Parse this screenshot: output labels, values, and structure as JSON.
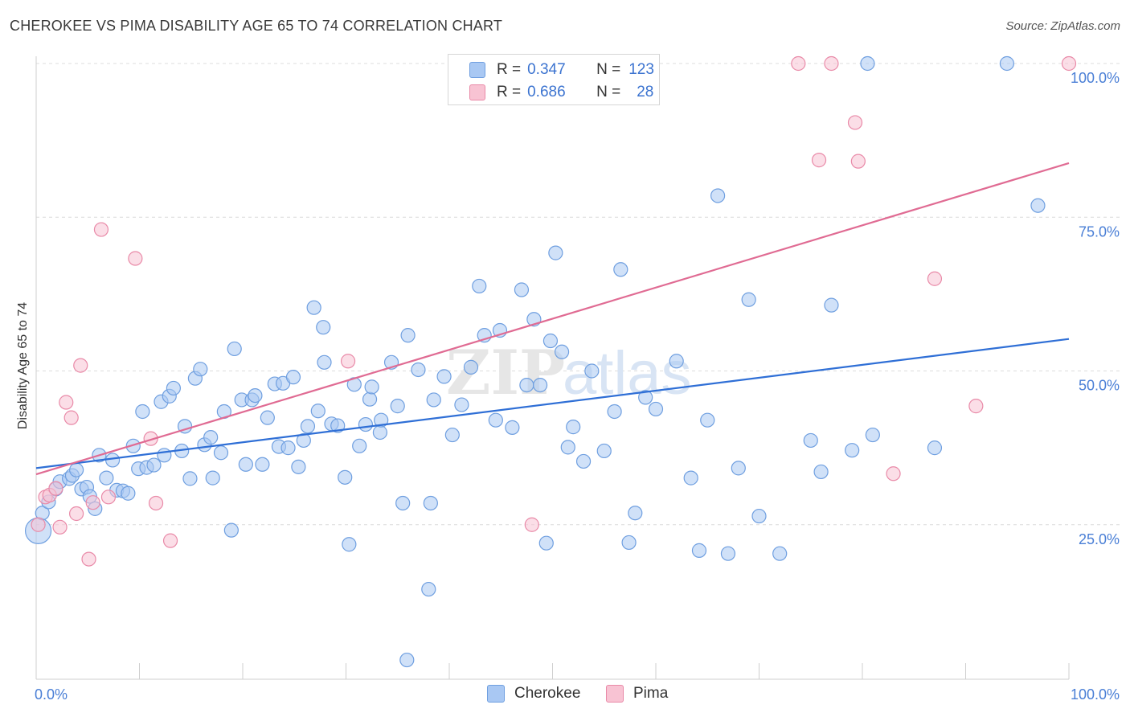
{
  "header": {
    "title": "CHEROKEE VS PIMA DISABILITY AGE 65 TO 74 CORRELATION CHART",
    "source": "Source: ZipAtlas.com"
  },
  "legend": {
    "rows": [
      {
        "r_label": "R =",
        "r_value": "0.347",
        "n_label": "N =",
        "n_value": "123",
        "color": "#a9c8f3",
        "stroke": "#6f9fe0"
      },
      {
        "r_label": "R =",
        "r_value": "0.686",
        "n_label": "N =",
        "n_value": "28",
        "color": "#f8c3d3",
        "stroke": "#e98aa8"
      }
    ]
  },
  "bottom_legend": [
    {
      "label": "Cherokee",
      "color": "#a9c8f3",
      "stroke": "#6f9fe0"
    },
    {
      "label": "Pima",
      "color": "#f8c3d3",
      "stroke": "#e98aa8"
    }
  ],
  "watermark": {
    "zip": "ZIP",
    "atlas": "atlas"
  },
  "chart_data": {
    "type": "scatter",
    "title": "CHEROKEE VS PIMA DISABILITY AGE 65 TO 74 CORRELATION CHART",
    "xlabel": "",
    "ylabel": "Disability Age 65 to 74",
    "xlim": [
      0,
      100
    ],
    "ylim": [
      0,
      102
    ],
    "x_tick_labels": [
      "0.0%",
      "100.0%"
    ],
    "y_ticks": [
      25,
      50,
      75,
      100
    ],
    "y_tick_labels": [
      "25.0%",
      "50.0%",
      "75.0%",
      "100.0%"
    ],
    "grid": true,
    "legend_position": "top-center",
    "series": [
      {
        "name": "Cherokee",
        "color": "#6f9fe0",
        "fill": "#a9c8f3",
        "trend": {
          "x": [
            0,
            100
          ],
          "y": [
            34.2,
            55.2
          ],
          "color": "#2f6fd6"
        },
        "points": [
          [
            0.2,
            24.0
          ],
          [
            0.6,
            26.9
          ],
          [
            1.2,
            28.7
          ],
          [
            1.9,
            30.8
          ],
          [
            2.3,
            32.0
          ],
          [
            3.2,
            32.5
          ],
          [
            3.5,
            33.0
          ],
          [
            3.9,
            33.9
          ],
          [
            4.4,
            30.8
          ],
          [
            4.9,
            31.1
          ],
          [
            5.2,
            29.6
          ],
          [
            5.7,
            27.6
          ],
          [
            6.1,
            36.3
          ],
          [
            6.8,
            32.6
          ],
          [
            7.4,
            35.5
          ],
          [
            7.8,
            30.6
          ],
          [
            8.4,
            30.5
          ],
          [
            8.9,
            30.1
          ],
          [
            9.4,
            37.8
          ],
          [
            9.9,
            34.1
          ],
          [
            10.3,
            43.4
          ],
          [
            10.7,
            34.3
          ],
          [
            11.4,
            34.7
          ],
          [
            12.1,
            45.0
          ],
          [
            12.4,
            36.3
          ],
          [
            12.9,
            45.9
          ],
          [
            13.3,
            47.2
          ],
          [
            14.1,
            37.0
          ],
          [
            14.4,
            41.0
          ],
          [
            14.9,
            32.5
          ],
          [
            15.4,
            48.8
          ],
          [
            15.9,
            50.3
          ],
          [
            16.3,
            38.0
          ],
          [
            16.9,
            39.2
          ],
          [
            17.1,
            32.6
          ],
          [
            17.9,
            36.7
          ],
          [
            18.2,
            43.4
          ],
          [
            18.9,
            24.1
          ],
          [
            19.2,
            53.6
          ],
          [
            19.9,
            45.3
          ],
          [
            20.3,
            34.8
          ],
          [
            20.9,
            45.3
          ],
          [
            21.2,
            46.0
          ],
          [
            21.9,
            34.8
          ],
          [
            22.4,
            42.4
          ],
          [
            23.1,
            47.9
          ],
          [
            23.5,
            37.7
          ],
          [
            23.9,
            48.0
          ],
          [
            24.4,
            37.5
          ],
          [
            24.9,
            49.0
          ],
          [
            25.4,
            34.4
          ],
          [
            25.9,
            38.7
          ],
          [
            26.3,
            41.0
          ],
          [
            26.9,
            60.3
          ],
          [
            27.3,
            43.5
          ],
          [
            27.9,
            51.4
          ],
          [
            27.8,
            57.1
          ],
          [
            28.6,
            41.4
          ],
          [
            29.2,
            41.1
          ],
          [
            29.9,
            32.7
          ],
          [
            30.3,
            21.8
          ],
          [
            30.8,
            47.8
          ],
          [
            31.3,
            37.8
          ],
          [
            31.9,
            41.3
          ],
          [
            32.3,
            45.4
          ],
          [
            32.5,
            47.4
          ],
          [
            33.3,
            40.0
          ],
          [
            33.4,
            42.0
          ],
          [
            34.4,
            51.4
          ],
          [
            35.0,
            44.3
          ],
          [
            35.5,
            28.5
          ],
          [
            36.0,
            55.8
          ],
          [
            37.0,
            50.2
          ],
          [
            38.0,
            14.5
          ],
          [
            38.2,
            28.5
          ],
          [
            38.5,
            45.3
          ],
          [
            39.5,
            49.1
          ],
          [
            40.3,
            39.6
          ],
          [
            41.2,
            44.5
          ],
          [
            42.1,
            50.6
          ],
          [
            42.9,
            63.8
          ],
          [
            43.4,
            55.8
          ],
          [
            44.5,
            42.0
          ],
          [
            44.9,
            56.6
          ],
          [
            46.1,
            40.8
          ],
          [
            47.0,
            63.2
          ],
          [
            47.5,
            47.7
          ],
          [
            48.2,
            58.4
          ],
          [
            48.8,
            47.7
          ],
          [
            49.4,
            22.0
          ],
          [
            49.8,
            54.9
          ],
          [
            50.3,
            69.2
          ],
          [
            50.9,
            53.1
          ],
          [
            51.5,
            37.6
          ],
          [
            52.0,
            40.9
          ],
          [
            53.0,
            35.3
          ],
          [
            53.8,
            50.0
          ],
          [
            55.0,
            37.0
          ],
          [
            56.0,
            43.4
          ],
          [
            56.6,
            66.5
          ],
          [
            57.4,
            22.1
          ],
          [
            58.0,
            26.9
          ],
          [
            59.0,
            45.7
          ],
          [
            60.0,
            43.8
          ],
          [
            62.0,
            51.6
          ],
          [
            63.4,
            32.6
          ],
          [
            64.2,
            20.8
          ],
          [
            65.0,
            42.0
          ],
          [
            66.0,
            78.5
          ],
          [
            67.0,
            20.3
          ],
          [
            68.0,
            34.2
          ],
          [
            69.0,
            61.6
          ],
          [
            70.0,
            26.4
          ],
          [
            72.0,
            20.3
          ],
          [
            75.0,
            38.7
          ],
          [
            76.0,
            33.6
          ],
          [
            77.0,
            60.7
          ],
          [
            79.0,
            37.1
          ],
          [
            80.5,
            100.0
          ],
          [
            81.0,
            39.6
          ],
          [
            87.0,
            37.5
          ],
          [
            94.0,
            100.0
          ],
          [
            97.0,
            76.9
          ],
          [
            35.9,
            3.0
          ]
        ]
      },
      {
        "name": "Pima",
        "color": "#e98aa8",
        "fill": "#f8c3d3",
        "trend": {
          "x": [
            0,
            100
          ],
          "y": [
            33.2,
            83.8
          ],
          "color": "#e06b93"
        },
        "points": [
          [
            0.2,
            25.0
          ],
          [
            0.9,
            29.5
          ],
          [
            1.3,
            29.8
          ],
          [
            1.9,
            30.9
          ],
          [
            2.3,
            24.6
          ],
          [
            2.9,
            44.9
          ],
          [
            3.4,
            42.4
          ],
          [
            3.9,
            26.8
          ],
          [
            4.3,
            50.9
          ],
          [
            5.1,
            19.4
          ],
          [
            5.5,
            28.6
          ],
          [
            6.3,
            73.0
          ],
          [
            7.0,
            29.5
          ],
          [
            9.6,
            68.3
          ],
          [
            11.1,
            39.0
          ],
          [
            11.6,
            28.5
          ],
          [
            13.0,
            22.4
          ],
          [
            30.2,
            51.6
          ],
          [
            48.0,
            25.0
          ],
          [
            73.8,
            100.0
          ],
          [
            75.8,
            84.3
          ],
          [
            77.0,
            100.0
          ],
          [
            79.3,
            90.4
          ],
          [
            79.6,
            84.1
          ],
          [
            83.0,
            33.3
          ],
          [
            87.0,
            65.0
          ],
          [
            91.0,
            44.3
          ],
          [
            100.0,
            100.0
          ]
        ]
      }
    ]
  }
}
